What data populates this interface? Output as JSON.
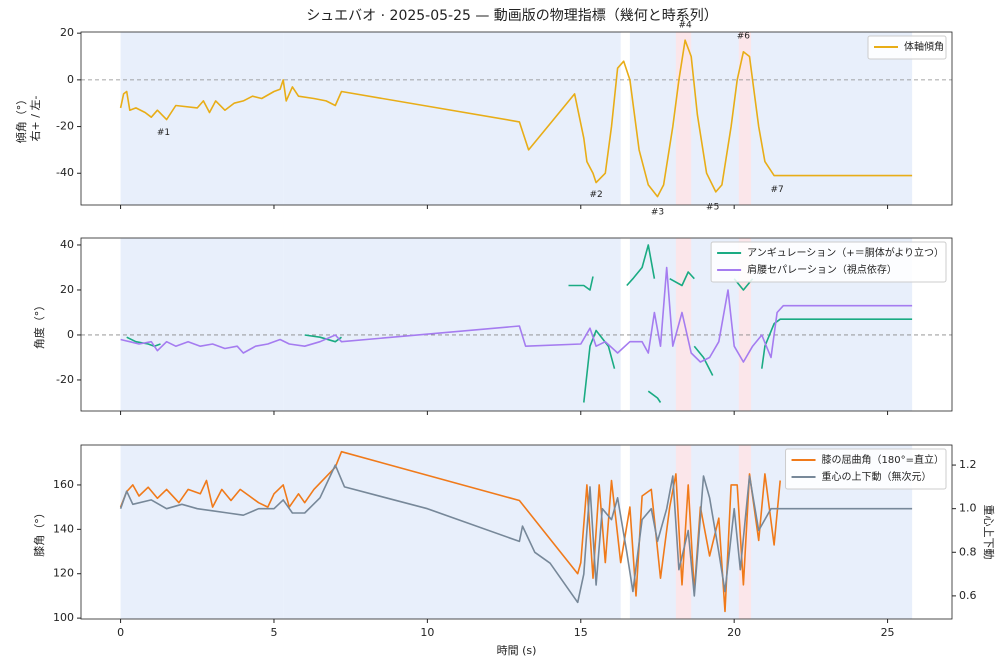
{
  "title": "シュエバオ · 2025-05-25 — 動画版の物理指標（幾何と時系列）",
  "chart_data": [
    {
      "type": "line",
      "ylabel": "傾角（°）",
      "ylabel2": "右+ / 左-",
      "xlim": [
        -1.29,
        27.1
      ],
      "ylim": [
        -53.6,
        20.5
      ],
      "xticks": [
        0,
        5,
        10,
        15,
        20,
        25
      ],
      "yticks": [
        -40,
        -20,
        0,
        20
      ],
      "hline": 0,
      "legend": "upper right",
      "spans": [
        {
          "start": 0,
          "end": 5.3,
          "color": "#e8effb"
        },
        {
          "start": 5.3,
          "end": 16.3,
          "color": "#e8effb"
        },
        {
          "start": 16.6,
          "end": 25.8,
          "color": "#e8effb"
        },
        {
          "start": 18.1,
          "end": 18.6,
          "color": "#fbe6ea"
        },
        {
          "start": 20.15,
          "end": 20.55,
          "color": "#fbe6ea"
        }
      ],
      "series": [
        {
          "name": "体軸傾角",
          "color": "#e8ad17",
          "x": [
            0,
            0.1,
            0.2,
            0.3,
            0.5,
            0.8,
            1.0,
            1.2,
            1.5,
            1.8,
            2.5,
            2.7,
            2.9,
            3.1,
            3.4,
            3.7,
            4.0,
            4.3,
            4.6,
            5.0,
            5.2,
            5.3,
            5.4,
            5.6,
            5.8,
            6.3,
            6.7,
            7.0,
            7.2,
            13.0,
            13.3,
            14.8,
            15.1,
            15.2,
            15.4,
            15.5,
            15.8,
            16.0,
            16.2,
            16.4,
            16.6,
            16.9,
            17.2,
            17.5,
            17.7,
            18.0,
            18.2,
            18.4,
            18.6,
            18.8,
            19.1,
            19.4,
            19.6,
            19.9,
            20.1,
            20.3,
            20.5,
            20.8,
            21.0,
            21.3,
            25.8
          ],
          "values": [
            -12,
            -6,
            -5,
            -13,
            -12,
            -14,
            -16,
            -13,
            -17,
            -11,
            -12,
            -9,
            -14,
            -9,
            -13,
            -10,
            -9,
            -7,
            -8,
            -5,
            -4,
            0,
            -9,
            -3,
            -7,
            -8,
            -9,
            -11,
            -5,
            -18,
            -30,
            -6,
            -25,
            -35,
            -40,
            -44,
            -40,
            -20,
            5,
            8,
            0,
            -30,
            -45,
            -50,
            -45,
            -20,
            0,
            17,
            10,
            -15,
            -40,
            -48,
            -45,
            -20,
            0,
            12,
            10,
            -20,
            -35,
            -41,
            -41
          ]
        }
      ],
      "annotations": [
        {
          "text": "#1",
          "x": 1.4,
          "y": -22.5
        },
        {
          "text": "#2",
          "x": 15.5,
          "y": -49
        },
        {
          "text": "#3",
          "x": 17.5,
          "y": -56.6
        },
        {
          "text": "#4",
          "x": 18.4,
          "y": 23.4
        },
        {
          "text": "#5",
          "x": 19.3,
          "y": -54.5
        },
        {
          "text": "#6",
          "x": 20.3,
          "y": 18.7
        },
        {
          "text": "#7",
          "x": 21.4,
          "y": -47
        }
      ]
    },
    {
      "type": "line",
      "ylabel": "角度（°）",
      "xlim": [
        -1.29,
        27.1
      ],
      "ylim": [
        -33.8,
        43.1
      ],
      "xticks": [
        0,
        5,
        10,
        15,
        20,
        25
      ],
      "yticks": [
        -20,
        0,
        20,
        40
      ],
      "hline": 0,
      "legend": "upper right",
      "spans": [
        {
          "start": 0,
          "end": 5.3,
          "color": "#e8effb"
        },
        {
          "start": 5.3,
          "end": 16.3,
          "color": "#e8effb"
        },
        {
          "start": 16.6,
          "end": 25.8,
          "color": "#e8effb"
        },
        {
          "start": 18.1,
          "end": 18.6,
          "color": "#fbe6ea"
        },
        {
          "start": 20.15,
          "end": 20.55,
          "color": "#fbe6ea"
        }
      ],
      "series": [
        {
          "name": "アンギュレーション（+＝胴体がより立つ）",
          "color": "#1aab83",
          "x": [
            0.2,
            0.5,
            0.9,
            1.1,
            1.3,
            null,
            6.0,
            6.5,
            7.0,
            7.2,
            null,
            14.6,
            15.1,
            15.3,
            15.4,
            null,
            15.1,
            15.3,
            15.5,
            15.9,
            16.1,
            null,
            16.5,
            16.7,
            17.0,
            17.2,
            17.4,
            null,
            17.2,
            17.5,
            17.6,
            null,
            17.9,
            18.3,
            18.5,
            18.7,
            null,
            18.7,
            19.0,
            19.3,
            null,
            20.0,
            20.3,
            20.6,
            null,
            20.9,
            21.0,
            21.3,
            21.5,
            25.8
          ],
          "values": [
            -1,
            -3,
            -4,
            -5,
            -4,
            null,
            0,
            -1,
            -3,
            -1,
            null,
            22,
            22,
            20,
            26,
            null,
            -30,
            -5,
            2,
            -5,
            -15,
            null,
            22,
            25,
            30,
            40,
            25,
            null,
            -25,
            -28,
            -30,
            null,
            25,
            22,
            28,
            25,
            null,
            -5,
            -10,
            -18,
            null,
            25,
            20,
            25,
            null,
            -15,
            -5,
            5,
            7,
            7
          ]
        },
        {
          "name": "肩腰セパレーション（視点依存）",
          "color": "#a57cf0",
          "x": [
            0,
            0.3,
            0.6,
            1.0,
            1.2,
            1.5,
            1.8,
            2.2,
            2.6,
            3.0,
            3.4,
            3.8,
            4.0,
            4.4,
            4.8,
            5.2,
            5.5,
            6.0,
            6.5,
            7.0,
            7.2,
            13.0,
            13.2,
            15.0,
            15.3,
            15.5,
            15.8,
            16.2,
            16.6,
            17.0,
            17.2,
            17.4,
            17.6,
            17.8,
            18.0,
            18.3,
            18.6,
            18.9,
            19.2,
            19.5,
            19.8,
            20.0,
            20.3,
            20.6,
            20.9,
            21.2,
            21.4,
            21.6,
            25.8
          ],
          "values": [
            -2,
            -3,
            -4,
            -3,
            -7,
            -3,
            -5,
            -3,
            -5,
            -4,
            -6,
            -5,
            -8,
            -5,
            -4,
            -2,
            -4,
            -5,
            -3,
            0,
            -3,
            4,
            -5,
            -4,
            3,
            -5,
            -3,
            -8,
            -3,
            -3,
            -8,
            10,
            -5,
            30,
            -5,
            10,
            -8,
            -12,
            -10,
            -3,
            20,
            -5,
            -12,
            -5,
            0,
            -10,
            10,
            13,
            13
          ]
        }
      ]
    },
    {
      "type": "line",
      "ylabel": "膝角（°）",
      "y2label": "重心上下動",
      "xlabel": "時間 (s)",
      "xlim": [
        -1.29,
        27.1
      ],
      "ylim": [
        99.6,
        178
      ],
      "y2lim": [
        0.494,
        1.292
      ],
      "xticks": [
        0,
        5,
        10,
        15,
        20,
        25
      ],
      "yticks": [
        100,
        120,
        140,
        160
      ],
      "y2ticks": [
        0.6,
        0.8,
        {
          "value": 1,
          "label": "1.0"
        },
        1.2
      ],
      "legend": "upper right",
      "spans": [
        {
          "start": 0,
          "end": 5.3,
          "color": "#e8effb"
        },
        {
          "start": 5.3,
          "end": 16.3,
          "color": "#e8effb"
        },
        {
          "start": 16.6,
          "end": 25.8,
          "color": "#e8effb"
        },
        {
          "start": 18.1,
          "end": 18.6,
          "color": "#fbe6ea"
        },
        {
          "start": 20.15,
          "end": 20.55,
          "color": "#fbe6ea"
        }
      ],
      "series": [
        {
          "name": "膝の屈曲角（180°=直立）",
          "color": "#f07a1a",
          "x": [
            0,
            0.2,
            0.4,
            0.6,
            0.9,
            1.2,
            1.5,
            1.9,
            2.2,
            2.6,
            2.8,
            3.0,
            3.3,
            3.6,
            3.9,
            4.2,
            4.5,
            4.8,
            5.0,
            5.3,
            5.5,
            5.8,
            6.0,
            6.3,
            7.0,
            7.2,
            13.0,
            14.9,
            15.0,
            15.2,
            15.4,
            15.6,
            15.8,
            16.0,
            16.3,
            16.6,
            16.8,
            17.0,
            17.3,
            17.6,
            17.9,
            18.1,
            18.3,
            18.5,
            18.7,
            18.9,
            19.2,
            19.5,
            19.7,
            19.9,
            20.1,
            20.3,
            20.5,
            20.8,
            21.0,
            21.3,
            21.5
          ],
          "values": [
            150,
            157,
            160,
            155,
            159,
            154,
            158,
            152,
            158,
            156,
            162,
            150,
            158,
            153,
            158,
            155,
            152,
            150,
            156,
            160,
            150,
            156,
            152,
            158,
            168,
            175,
            153,
            120,
            125,
            160,
            118,
            160,
            125,
            162,
            125,
            150,
            110,
            155,
            158,
            118,
            150,
            165,
            115,
            160,
            112,
            150,
            128,
            145,
            103,
            160,
            160,
            115,
            165,
            135,
            165,
            133,
            162
          ]
        },
        {
          "name": "重心の上下動（無次元）",
          "color": "#778899",
          "axis": "y2",
          "x": [
            0,
            0.2,
            0.4,
            1,
            1.5,
            2,
            2.5,
            3,
            3.5,
            4,
            4.5,
            5,
            5.3,
            5.6,
            6,
            6.5,
            7.0,
            7.3,
            10,
            13,
            13.1,
            13.5,
            14,
            14.9,
            15.1,
            15.3,
            15.5,
            15.7,
            16.0,
            16.2,
            16.5,
            16.7,
            17.0,
            17.3,
            17.5,
            17.8,
            18.0,
            18.2,
            18.5,
            18.7,
            19.0,
            19.2,
            19.5,
            19.7,
            20.0,
            20.2,
            20.5,
            20.8,
            21.2,
            21.5,
            25.8
          ],
          "values": [
            1.0,
            1.08,
            1.02,
            1.04,
            1.0,
            1.02,
            1.0,
            0.99,
            0.98,
            0.97,
            1.0,
            1.0,
            1.04,
            0.98,
            0.98,
            1.05,
            1.2,
            1.1,
            1.0,
            0.85,
            0.92,
            0.8,
            0.75,
            0.57,
            0.7,
            1.1,
            0.65,
            1.0,
            0.95,
            1.05,
            0.8,
            0.62,
            0.95,
            1.0,
            0.85,
            1.0,
            1.15,
            0.72,
            0.9,
            0.6,
            1.15,
            1.05,
            0.8,
            0.62,
            1.0,
            0.72,
            1.15,
            0.9,
            1.0,
            1.0,
            1.0
          ]
        }
      ]
    }
  ]
}
